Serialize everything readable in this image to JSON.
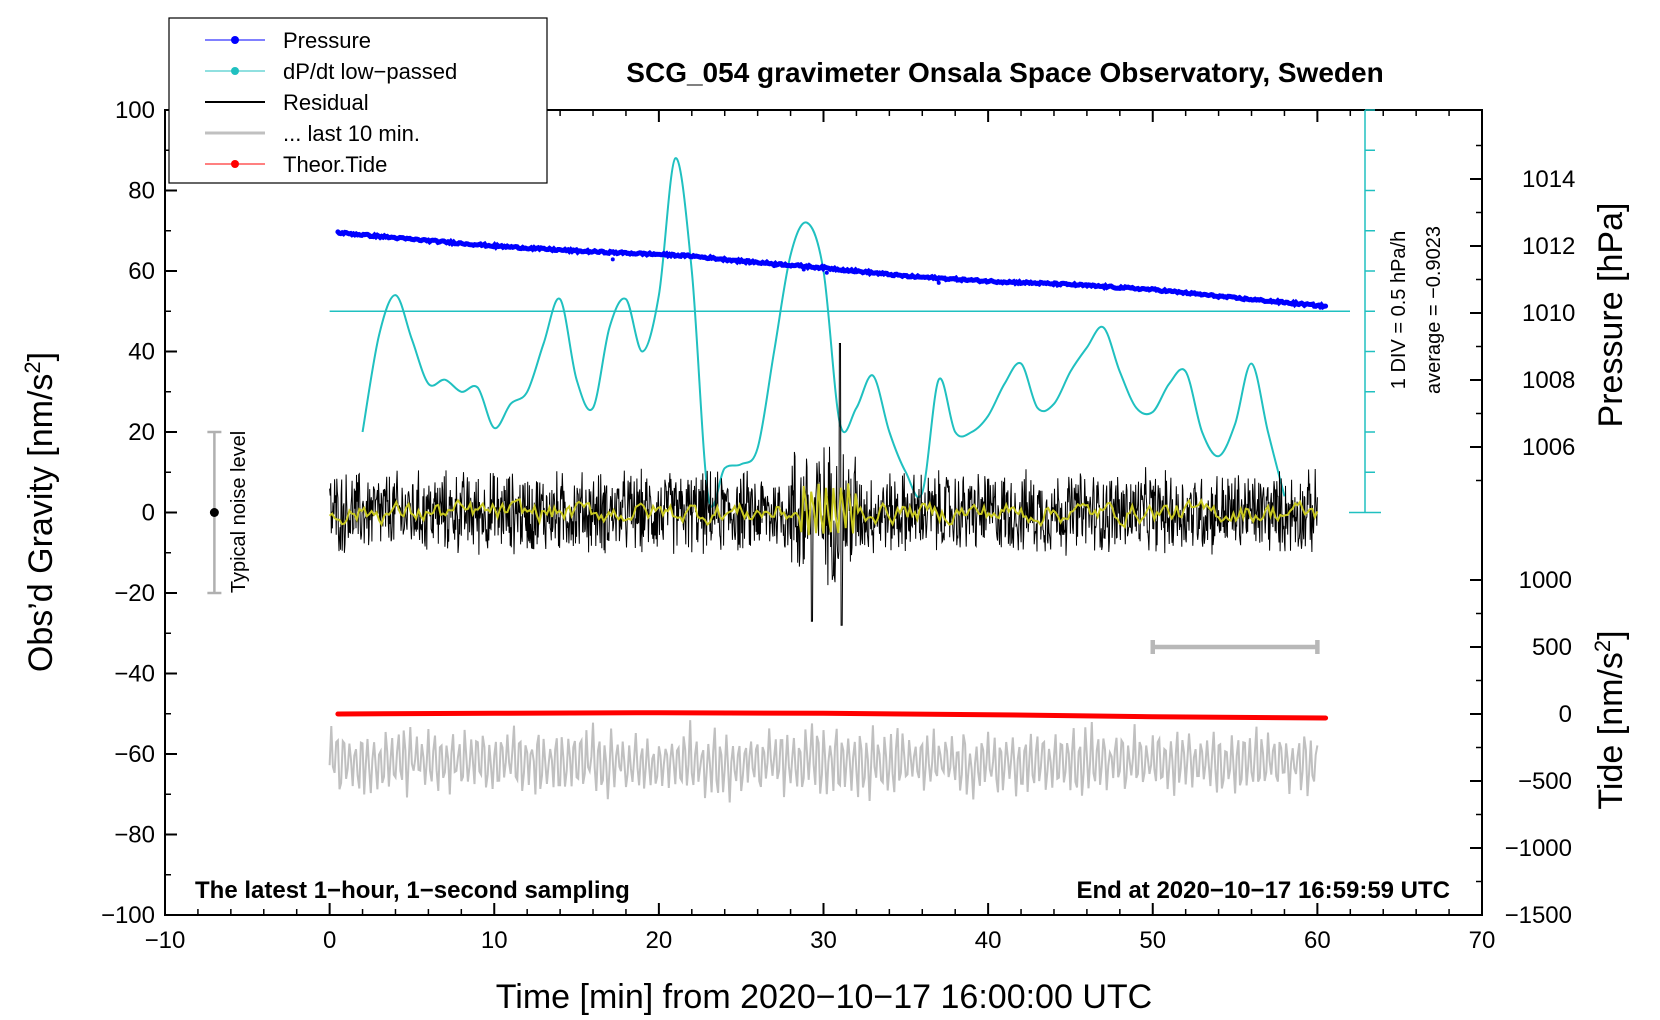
{
  "chart_data": {
    "type": "line",
    "title": "SCG_054 gravimeter Onsala Space Observatory, Sweden",
    "xlabel": "Time [min] from 2020−10−17 16:00:00 UTC",
    "ylabel_left": "Obs’d Gravity [nm/s",
    "ylabel_left_sup": "2",
    "ylabel_left_close": "]",
    "ylabel_right_pressure": "Pressure [hPa]",
    "ylabel_right_tide": "Tide [nm/s",
    "ylabel_right_tide_sup": "2",
    "ylabel_right_tide_close": "]",
    "xlim": [
      -10,
      70
    ],
    "ylim": [
      -100,
      100
    ],
    "pressure_lim": [
      1004,
      1016
    ],
    "tide_lim": [
      -1500,
      1500
    ],
    "x_ticks": [
      -10,
      0,
      10,
      20,
      30,
      40,
      50,
      60,
      70
    ],
    "x_tick_labels": [
      "−10",
      "0",
      "10",
      "20",
      "30",
      "40",
      "50",
      "60",
      "70"
    ],
    "y_ticks": [
      -100,
      -80,
      -60,
      -40,
      -20,
      0,
      20,
      40,
      60,
      80,
      100
    ],
    "y_tick_labels": [
      "−100",
      "−80",
      "−60",
      "−40",
      "−20",
      "0",
      "20",
      "40",
      "60",
      "80",
      "100"
    ],
    "pressure_ticks": [
      1006,
      1008,
      1010,
      1012,
      1014
    ],
    "pressure_tick_labels": [
      "1006",
      "1008",
      "1010",
      "1012",
      "1014"
    ],
    "tide_ticks": [
      -1500,
      -1000,
      -500,
      0,
      500,
      1000
    ],
    "tide_tick_labels": [
      "−1500",
      "−1000",
      "−500",
      "0",
      "500",
      "1000"
    ],
    "legend": [
      {
        "label": "Pressure",
        "color": "#0000ff",
        "marker": true
      },
      {
        "label": "dP/dt low−passed",
        "color": "#20c0c0",
        "marker": true
      },
      {
        "label": "Residual",
        "color": "#000000",
        "marker": false
      },
      {
        "label": "... last 10 min.",
        "color": "#c0c0c0",
        "marker": false
      },
      {
        "label": "Theor.Tide",
        "color": "#ff0000",
        "marker": true
      }
    ],
    "series": [
      {
        "name": "Pressure",
        "axis": "pressure",
        "color": "#0000ff",
        "x": [
          0.5,
          5,
          10,
          15,
          20,
          22,
          25,
          30,
          35,
          40,
          45,
          50,
          55,
          60.5
        ],
        "y": [
          1012.4,
          1012.2,
          1012.0,
          1011.85,
          1011.75,
          1011.7,
          1011.55,
          1011.35,
          1011.1,
          1010.95,
          1010.85,
          1010.7,
          1010.45,
          1010.2
        ]
      },
      {
        "name": "dP/dt low-passed",
        "axis": "dpdt",
        "color": "#20c0c0",
        "baseline": 50,
        "x": [
          2,
          3,
          4,
          5,
          6,
          7,
          8,
          9,
          10,
          11,
          12,
          13,
          14,
          15,
          16,
          17,
          18,
          19,
          20,
          21,
          22,
          23,
          24,
          25,
          26,
          27,
          28,
          29,
          30,
          31,
          32,
          33,
          34,
          35,
          36,
          37,
          38,
          39,
          40,
          41,
          42,
          43,
          44,
          45,
          46,
          47,
          48,
          49,
          50,
          51,
          52,
          53,
          54,
          55,
          56,
          57,
          58
        ],
        "y": [
          20,
          44,
          54,
          43,
          32,
          33,
          30,
          31,
          21,
          27,
          30,
          42,
          53,
          33,
          26,
          46,
          53,
          40,
          54,
          88,
          60,
          4,
          11,
          12,
          16,
          40,
          64,
          72,
          60,
          22,
          26,
          34,
          20,
          10,
          5,
          33,
          20,
          20,
          24,
          32,
          37,
          26,
          27,
          35,
          41,
          46,
          35,
          26,
          25,
          32,
          35,
          20,
          14,
          22,
          37,
          20,
          4
        ]
      },
      {
        "name": "Residual",
        "axis": "gravity",
        "color": "#000000",
        "x_range": [
          0,
          60
        ],
        "amplitude": 9,
        "spike_at": 31,
        "spike_max": 42,
        "spike_min": -28
      },
      {
        "name": "Residual smoothed",
        "axis": "gravity",
        "color": "#c8c820",
        "x_range": [
          0,
          60
        ],
        "amplitude": 2
      },
      {
        "name": "... last 10 min.",
        "axis": "gravity",
        "color": "#c0c0c0",
        "x_range": [
          0,
          60
        ],
        "center": -62,
        "amplitude": 9
      },
      {
        "name": "Theor.Tide",
        "axis": "tide",
        "color": "#ff0000",
        "x": [
          0.5,
          10,
          20,
          30,
          40,
          50,
          60.5
        ],
        "y": [
          0,
          5,
          10,
          5,
          -5,
          -20,
          -30
        ]
      }
    ],
    "noise_bar": {
      "x": -7,
      "low": -20,
      "high": 20,
      "label": "Typical noise level"
    },
    "last10_bar": {
      "x_start": 50,
      "x_end": 60,
      "tide_value": 500
    },
    "div_scale_label": "1 DIV = 0.5 hPa/h",
    "average_label": "average = −0.9023",
    "footer_left": "The latest 1−hour, 1−second sampling",
    "footer_right": "End at 2020−10−17 16:59:59 UTC"
  }
}
